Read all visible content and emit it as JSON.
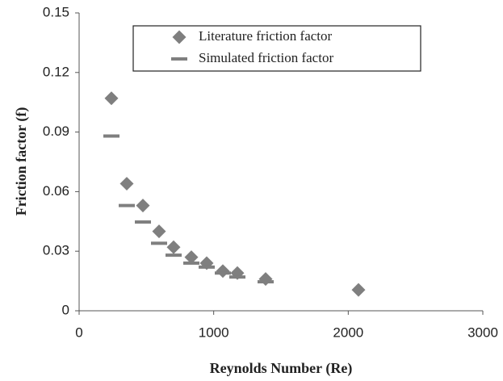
{
  "chart_data": {
    "type": "scatter",
    "x_label": "Reynolds Number (Re)",
    "y_label": "Friction factor (f)",
    "xlim": [
      0,
      3000
    ],
    "xticks": [
      0,
      1000,
      2000,
      3000
    ],
    "ylim": [
      0,
      0.15
    ],
    "yticks": [
      0,
      0.03,
      0.06,
      0.09,
      0.12,
      0.15
    ],
    "legend": "top",
    "series": [
      {
        "name": "Literature friction factor",
        "color": "#7f7f7f",
        "marker": "diamond",
        "x": [
          240,
          354,
          474,
          594,
          702,
          834,
          948,
          1068,
          1176,
          1386,
          2076
        ],
        "values": [
          0.107,
          0.064,
          0.053,
          0.04,
          0.032,
          0.027,
          0.024,
          0.02,
          0.019,
          0.016,
          0.0105
        ]
      },
      {
        "name": "Simulated friction factor",
        "color": "#7f7f7f",
        "marker": "dash",
        "x": [
          240,
          354,
          474,
          594,
          702,
          834,
          948,
          1068,
          1176,
          1386
        ],
        "values": [
          0.088,
          0.053,
          0.0447,
          0.034,
          0.028,
          0.024,
          0.022,
          0.019,
          0.017,
          0.0146
        ]
      }
    ]
  }
}
